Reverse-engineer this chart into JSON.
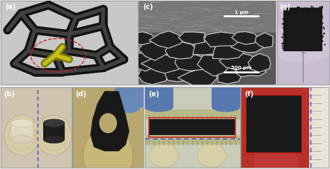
{
  "fig_width": 4.74,
  "fig_height": 2.44,
  "dpi": 100,
  "bg_color": "#e8e8e8",
  "panels": {
    "a": {
      "label": "(a)",
      "bg": "#b8b8b8"
    },
    "b": {
      "label": "(b)",
      "bg": "#d8cfc0"
    },
    "c": {
      "label": "(c)",
      "bg": "#606060"
    },
    "d": {
      "label": "(d)",
      "bg": "#b0a880"
    },
    "e": {
      "label": "(e)",
      "bg": "#c8d4c8"
    },
    "f": {
      "label": "(f)",
      "bg": "#b83030"
    },
    "g": {
      "label": "(g)",
      "bg": "#c8c0d0"
    }
  },
  "scale_bar_1um": "1 μm",
  "scale_bar_500um": "500 μm",
  "dashed_circle_color": "#cc2222",
  "dashed_line_color": "#3333cc",
  "red_rect_color": "#cc2222",
  "sponge_dark": "#1a1a1a",
  "sponge_yellow": "#c8c020",
  "white": "#ffffff",
  "coin_bg": "#d8cfc0",
  "blue_glove": "#5878b0",
  "ruler_color": "#b8b090"
}
